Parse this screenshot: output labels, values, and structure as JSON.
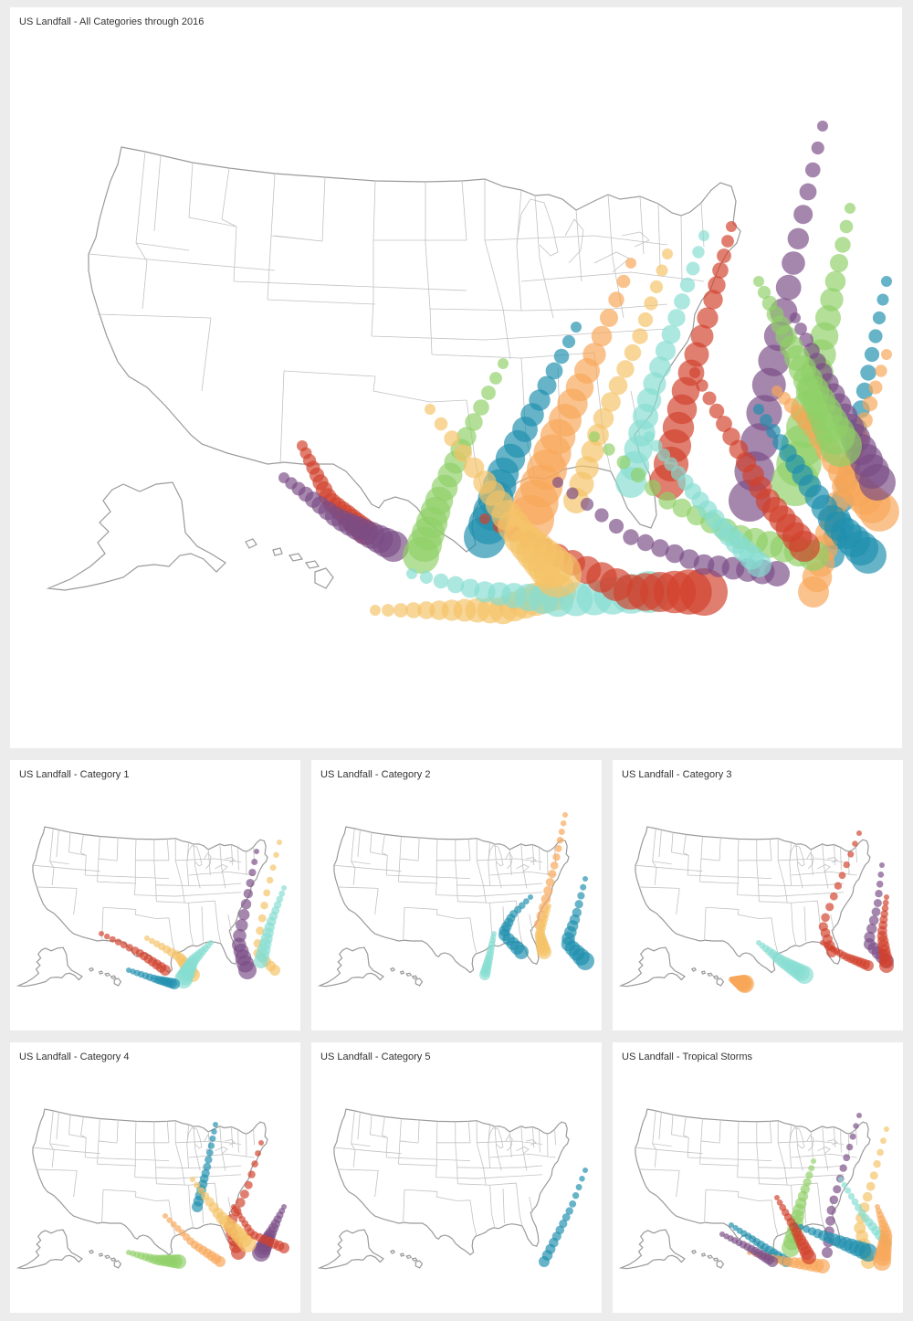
{
  "colors": [
    "#d1412c",
    "#7a4d86",
    "#8fd067",
    "#1f8fae",
    "#f8a659",
    "#f4c367",
    "#86ddd2"
  ],
  "panels": [
    {
      "id": "main",
      "title": "US Landfall - All Categories through 2016"
    },
    {
      "id": "cat1",
      "title": "US Landfall - Category 1"
    },
    {
      "id": "cat2",
      "title": "US Landfall - Category 2"
    },
    {
      "id": "cat3",
      "title": "US Landfall - Category 3"
    },
    {
      "id": "cat4",
      "title": "US Landfall - Category 4"
    },
    {
      "id": "cat5",
      "title": "US Landfall - Category 5"
    },
    {
      "id": "ts",
      "title": "US Landfall - Tropical Storms"
    }
  ]
}
